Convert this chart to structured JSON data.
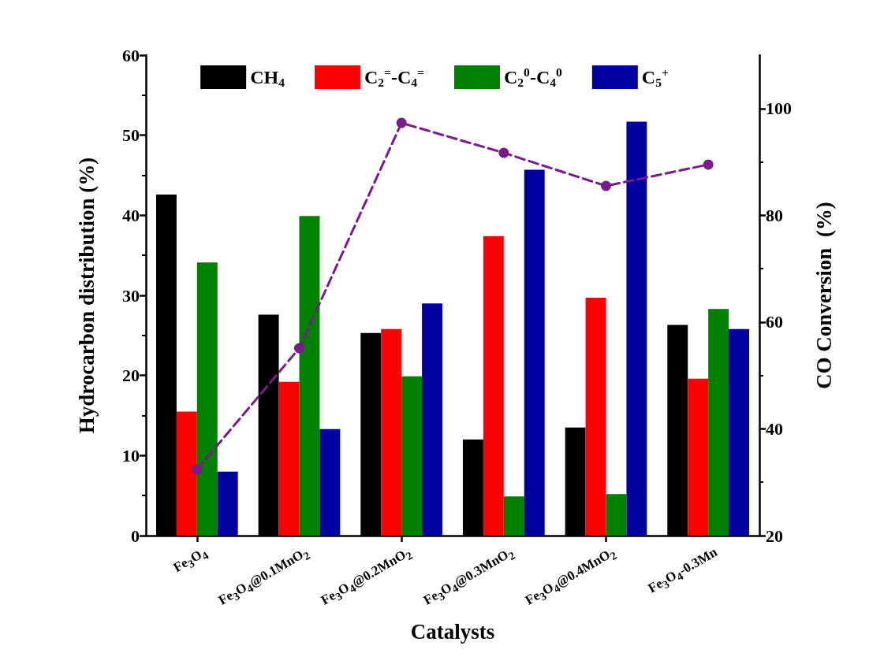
{
  "chart_data": {
    "type": "bar",
    "xlabel": "Catalysts",
    "ylabel": "Hydrocarbon distribution (%)",
    "y2label": "CO Conversion  (%)",
    "categories": [
      "Fe$_{3}$O$_{4}$",
      "Fe$_{3}$O$_{4}$@0.1MnO$_{2}$",
      "Fe$_{3}$O$_{4}$@0.2MnO$_{2}$",
      "Fe$_{3}$O$_{4}$@0.3MnO$_{2}$",
      "Fe$_{3}$O$_{4}$@0.4MnO$_{2}$",
      "Fe$_{3}$O$_{4}$-0.3Mn"
    ],
    "series": [
      {
        "name": "CH$_{4}$",
        "color": "#000000",
        "values": [
          42.6,
          27.6,
          25.3,
          12.0,
          13.5,
          26.3
        ]
      },
      {
        "name": "C$_{2}$$^{=}$-C$_{4}$$^{=}$",
        "color": "#ff0000",
        "values": [
          15.5,
          19.2,
          25.8,
          37.4,
          29.7,
          19.6
        ]
      },
      {
        "name": "C$_{2}$$^{0}$-C$_{4}$$^{0}$",
        "color": "#008000",
        "values": [
          34.1,
          39.9,
          19.9,
          4.9,
          5.2,
          28.3
        ]
      },
      {
        "name": "C$_{5}$$^{+}$",
        "color": "#0000a0",
        "values": [
          8.0,
          13.3,
          29.0,
          45.7,
          51.7,
          25.8
        ]
      },
      {
        "type": "line",
        "axis": "y2",
        "color": "#7b1a8c",
        "marker": "circle",
        "line_style": "dashed",
        "values": [
          32.4,
          55.1,
          97.3,
          91.7,
          85.5,
          89.5
        ]
      }
    ],
    "ylim": [
      0,
      60
    ],
    "yticks": [
      0,
      10,
      20,
      30,
      40,
      50,
      60
    ],
    "y2lim": [
      20,
      110
    ],
    "y2ticks": [
      20,
      40,
      60,
      80,
      100
    ],
    "grid": false,
    "legend": "top"
  }
}
